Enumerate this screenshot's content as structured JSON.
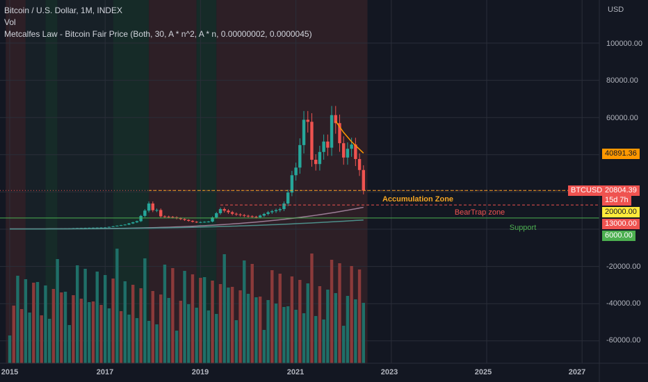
{
  "header": {
    "symbol_line": "Bitcoin / U.S. Dollar, 1M, INDEX",
    "vol": "Vol",
    "indicator": "Metcalfes Law - Bitcoin Fair Price (Both, 30, A * n^2, A * n, 0.00000002, 0.0000045)"
  },
  "price_axis": {
    "currency": "USD",
    "ticks": [
      "100000.00",
      "80000.00",
      "60000.00",
      "-20000.00",
      "-40000.00",
      "-60000.00"
    ]
  },
  "time_axis": {
    "ticks": [
      "2015",
      "2017",
      "2019",
      "2021",
      "2023",
      "2025",
      "2027"
    ]
  },
  "tags": {
    "fair_price": "40891.36",
    "symbol": "BTCUSD",
    "last_price": "20804.39",
    "countdown": "15d 7h",
    "accumulation_price": "20000.00",
    "beartrap_price": "13000.00",
    "support_price": "6000.00"
  },
  "zones": {
    "accumulation": "Accumulation Zone",
    "beartrap": "BearTrap zone",
    "support": "Support"
  },
  "colors": {
    "bg": "#131722",
    "up": "#26a69a",
    "down": "#ef5350",
    "bear_bg": "#2d1f26",
    "bull_bg": "#162b28",
    "accum": "#f5a623",
    "beartrap": "#ef5350",
    "support": "#4caf50",
    "fair_price": "#ff9800"
  },
  "chart_data": {
    "type": "candlestick",
    "title": "Bitcoin / U.S. Dollar, 1M, INDEX",
    "currency": "USD",
    "x_range": [
      "2014-12",
      "2027-12"
    ],
    "y_range": [
      -75000,
      112000
    ],
    "price_levels": [
      {
        "name": "Accumulation Zone",
        "value": 20000
      },
      {
        "name": "BearTrap zone",
        "value": 13000
      },
      {
        "name": "Support",
        "value": 6000
      }
    ],
    "last_price": 20804.39,
    "fair_price": 40891.36,
    "regime_shading": [
      {
        "from": "2014-12",
        "to": "2015-05",
        "state": "bear"
      },
      {
        "from": "2015-05",
        "to": "2015-10",
        "state": "neutral"
      },
      {
        "from": "2015-10",
        "to": "2016-01",
        "state": "bull"
      },
      {
        "from": "2016-01",
        "to": "2017-03",
        "state": "neutral"
      },
      {
        "from": "2017-03",
        "to": "2017-12",
        "state": "bull"
      },
      {
        "from": "2017-12",
        "to": "2018-12",
        "state": "bear"
      },
      {
        "from": "2018-12",
        "to": "2019-05",
        "state": "bull"
      },
      {
        "from": "2019-05",
        "to": "2022-07",
        "state": "bear"
      }
    ],
    "monthly_close": [
      {
        "date": "2015-01",
        "close": 230
      },
      {
        "date": "2015-06",
        "close": 260
      },
      {
        "date": "2016-01",
        "close": 370
      },
      {
        "date": "2016-06",
        "close": 670
      },
      {
        "date": "2017-01",
        "close": 970
      },
      {
        "date": "2017-06",
        "close": 2500
      },
      {
        "date": "2017-09",
        "close": 4300
      },
      {
        "date": "2017-11",
        "close": 10000
      },
      {
        "date": "2017-12",
        "close": 13800
      },
      {
        "date": "2018-01",
        "close": 10200
      },
      {
        "date": "2018-02",
        "close": 10300
      },
      {
        "date": "2018-03",
        "close": 6900
      },
      {
        "date": "2018-06",
        "close": 6400
      },
      {
        "date": "2018-11",
        "close": 4000
      },
      {
        "date": "2018-12",
        "close": 3700
      },
      {
        "date": "2019-03",
        "close": 4100
      },
      {
        "date": "2019-05",
        "close": 8600
      },
      {
        "date": "2019-06",
        "close": 10800
      },
      {
        "date": "2019-09",
        "close": 8300
      },
      {
        "date": "2019-12",
        "close": 7200
      },
      {
        "date": "2020-03",
        "close": 6400
      },
      {
        "date": "2020-06",
        "close": 9100
      },
      {
        "date": "2020-09",
        "close": 10800
      },
      {
        "date": "2020-10",
        "close": 13800
      },
      {
        "date": "2020-11",
        "close": 19700
      },
      {
        "date": "2020-12",
        "close": 29000
      },
      {
        "date": "2021-01",
        "close": 33100
      },
      {
        "date": "2021-02",
        "close": 45200
      },
      {
        "date": "2021-03",
        "close": 58800
      },
      {
        "date": "2021-04",
        "close": 57700
      },
      {
        "date": "2021-05",
        "close": 37300
      },
      {
        "date": "2021-06",
        "close": 35000
      },
      {
        "date": "2021-07",
        "close": 41500
      },
      {
        "date": "2021-08",
        "close": 47100
      },
      {
        "date": "2021-09",
        "close": 43800
      },
      {
        "date": "2021-10",
        "close": 61300
      },
      {
        "date": "2021-11",
        "close": 57000
      },
      {
        "date": "2021-12",
        "close": 46200
      },
      {
        "date": "2022-01",
        "close": 38500
      },
      {
        "date": "2022-02",
        "close": 43200
      },
      {
        "date": "2022-03",
        "close": 45500
      },
      {
        "date": "2022-04",
        "close": 37700
      },
      {
        "date": "2022-05",
        "close": 31800
      },
      {
        "date": "2022-06",
        "close": 20800
      }
    ]
  }
}
